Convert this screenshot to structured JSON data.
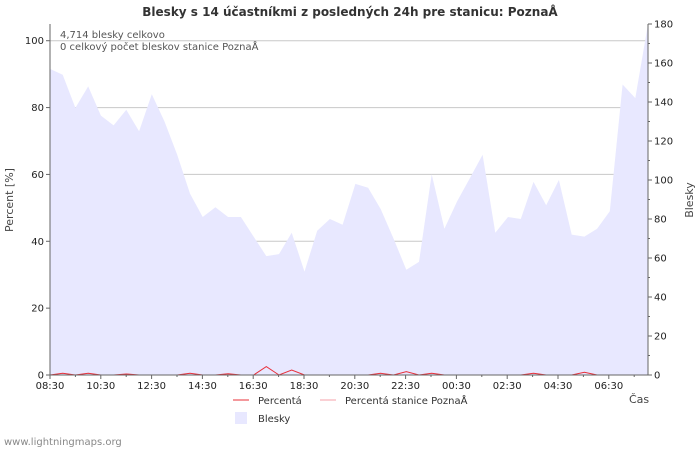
{
  "chart_data": {
    "type": "area",
    "title": "Blesky s 14 účastníkmi z posledných 24h pre stanicu: PoznaÅ",
    "info_lines": [
      "4,714 blesky celkovo",
      "0 celkový počet bleskov stanice PoznaÅ"
    ],
    "xlabel": "Čas",
    "ylabel_left": "Percent   [%]",
    "ylabel_right": "Blesky",
    "x_ticks": [
      "08:30",
      "10:30",
      "12:30",
      "14:30",
      "16:30",
      "18:30",
      "20:30",
      "22:30",
      "00:30",
      "02:30",
      "04:30",
      "06:30"
    ],
    "y_left_range": [
      0,
      105
    ],
    "y_left_ticks": [
      0,
      20,
      40,
      60,
      80,
      100
    ],
    "y_right_range": [
      0,
      180
    ],
    "y_right_ticks": [
      0,
      20,
      40,
      60,
      80,
      100,
      120,
      140,
      160,
      180
    ],
    "blesky_series": [
      157,
      154,
      137,
      148,
      133,
      128,
      136,
      125,
      144,
      130,
      113,
      93,
      81,
      86,
      81,
      81,
      71,
      61,
      62,
      73,
      53,
      74,
      80,
      77,
      98,
      96,
      85,
      70,
      54,
      58,
      103,
      75,
      89,
      101,
      113,
      73,
      81,
      80,
      99,
      87,
      100,
      72,
      71,
      75,
      84,
      149,
      142,
      180
    ],
    "percent_series": [
      0,
      0.5,
      0,
      0.5,
      0,
      0,
      0.3,
      0,
      0,
      0,
      0,
      0.5,
      0,
      0,
      0.4,
      0,
      0,
      2.5,
      0,
      1.5,
      0,
      0,
      0,
      0,
      0,
      0,
      0.5,
      0,
      1,
      0,
      0.5,
      0,
      0,
      0,
      0,
      0,
      0,
      0,
      0.5,
      0,
      0,
      0,
      0.8,
      0,
      0,
      0,
      0,
      0
    ],
    "station_percent_series": [
      0,
      0,
      0,
      0,
      0,
      0,
      0,
      0,
      0,
      0,
      0,
      0,
      0,
      0,
      0,
      0,
      0,
      0,
      0,
      0,
      0,
      0,
      0,
      0,
      0,
      0,
      0,
      0,
      0,
      0,
      0,
      0,
      0,
      0,
      0,
      0,
      0,
      0,
      0,
      0,
      0,
      0,
      0,
      0,
      0,
      0,
      0,
      0
    ],
    "legend": [
      {
        "label": "Percentá",
        "color": "#e8303a"
      },
      {
        "label": "Percentá stanice PoznaÅ",
        "color": "#f4a0a8"
      },
      {
        "label": "Blesky",
        "color": "#e8e8ff"
      }
    ]
  },
  "footer": "www.lightningmaps.org"
}
